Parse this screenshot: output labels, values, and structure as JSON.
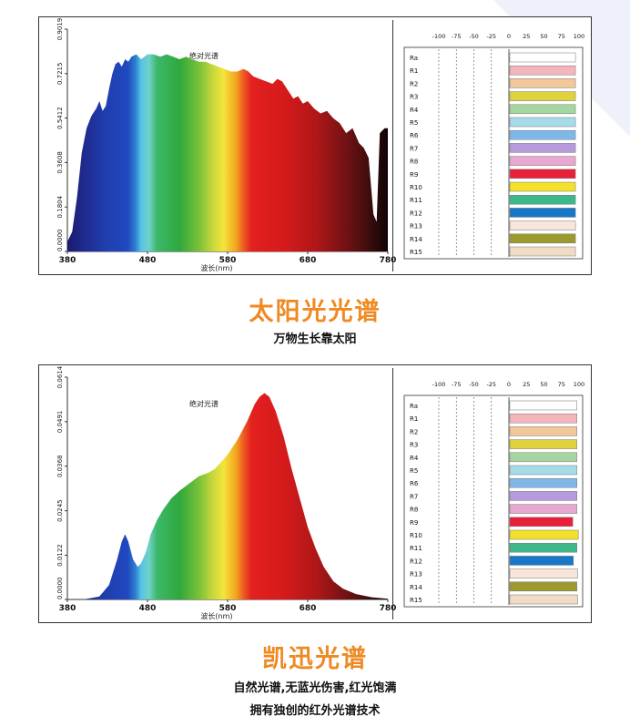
{
  "colors": {
    "accent": "#ef8a22",
    "text": "#111111"
  },
  "charts": [
    {
      "chart_data": {
        "type": "area",
        "title": "绝对光谱",
        "xlabel": "波长(nm)",
        "ylabel": "",
        "xlim": [
          380,
          780
        ],
        "ylim": [
          0,
          0.9019
        ],
        "x_ticks": [
          380,
          480,
          580,
          680,
          780
        ],
        "y_ticks": [
          "0.0000",
          "0.1804",
          "0.3608",
          "0.5412",
          "0.7215",
          "0.9019"
        ],
        "points": [
          [
            380,
            0.04
          ],
          [
            386,
            0.08
          ],
          [
            392,
            0.22
          ],
          [
            398,
            0.4
          ],
          [
            404,
            0.5
          ],
          [
            410,
            0.55
          ],
          [
            416,
            0.58
          ],
          [
            420,
            0.61
          ],
          [
            424,
            0.57
          ],
          [
            428,
            0.59
          ],
          [
            432,
            0.66
          ],
          [
            436,
            0.72
          ],
          [
            440,
            0.76
          ],
          [
            444,
            0.77
          ],
          [
            448,
            0.75
          ],
          [
            452,
            0.78
          ],
          [
            456,
            0.77
          ],
          [
            460,
            0.79
          ],
          [
            466,
            0.8
          ],
          [
            472,
            0.78
          ],
          [
            480,
            0.8
          ],
          [
            488,
            0.8
          ],
          [
            496,
            0.79
          ],
          [
            504,
            0.8
          ],
          [
            512,
            0.79
          ],
          [
            520,
            0.78
          ],
          [
            528,
            0.79
          ],
          [
            536,
            0.78
          ],
          [
            544,
            0.77
          ],
          [
            552,
            0.77
          ],
          [
            560,
            0.76
          ],
          [
            568,
            0.75
          ],
          [
            576,
            0.74
          ],
          [
            584,
            0.73
          ],
          [
            592,
            0.73
          ],
          [
            600,
            0.74
          ],
          [
            606,
            0.73
          ],
          [
            612,
            0.71
          ],
          [
            620,
            0.7
          ],
          [
            628,
            0.69
          ],
          [
            636,
            0.68
          ],
          [
            642,
            0.7
          ],
          [
            648,
            0.69
          ],
          [
            656,
            0.65
          ],
          [
            662,
            0.62
          ],
          [
            668,
            0.63
          ],
          [
            674,
            0.6
          ],
          [
            680,
            0.61
          ],
          [
            688,
            0.58
          ],
          [
            696,
            0.56
          ],
          [
            704,
            0.57
          ],
          [
            712,
            0.54
          ],
          [
            720,
            0.52
          ],
          [
            728,
            0.48
          ],
          [
            736,
            0.5
          ],
          [
            744,
            0.44
          ],
          [
            750,
            0.42
          ],
          [
            756,
            0.38
          ],
          [
            762,
            0.15
          ],
          [
            766,
            0.12
          ],
          [
            770,
            0.48
          ],
          [
            776,
            0.5
          ],
          [
            780,
            0.5
          ]
        ]
      },
      "ri": {
        "axis_labels": [
          "-100",
          "-75",
          "-50",
          "-25",
          "0",
          "25",
          "50",
          "75",
          "100"
        ],
        "rows": [
          {
            "label": "Ra",
            "value": 95,
            "color": "#ffffff"
          },
          {
            "label": "R1",
            "value": 95,
            "color": "#f5b5bd"
          },
          {
            "label": "R2",
            "value": 95,
            "color": "#f2c79a"
          },
          {
            "label": "R3",
            "value": 95,
            "color": "#e0d23c"
          },
          {
            "label": "R4",
            "value": 95,
            "color": "#a5d6a0"
          },
          {
            "label": "R5",
            "value": 95,
            "color": "#a5dce8"
          },
          {
            "label": "R6",
            "value": 95,
            "color": "#7fb8e8"
          },
          {
            "label": "R7",
            "value": 95,
            "color": "#b69adb"
          },
          {
            "label": "R8",
            "value": 95,
            "color": "#e8a8d2"
          },
          {
            "label": "R9",
            "value": 95,
            "color": "#e8203a"
          },
          {
            "label": "R10",
            "value": 95,
            "color": "#f2e02a"
          },
          {
            "label": "R11",
            "value": 95,
            "color": "#3cb88a"
          },
          {
            "label": "R12",
            "value": 95,
            "color": "#1878c8"
          },
          {
            "label": "R13",
            "value": 95,
            "color": "#f8e6dc"
          },
          {
            "label": "R14",
            "value": 95,
            "color": "#9c9a2e"
          },
          {
            "label": "R15",
            "value": 95,
            "color": "#f0dcc4"
          }
        ]
      }
    },
    {
      "chart_data": {
        "type": "area",
        "title": "绝对光谱",
        "xlabel": "波长(nm)",
        "ylabel": "",
        "xlim": [
          380,
          780
        ],
        "ylim": [
          0,
          0.0614
        ],
        "x_ticks": [
          380,
          480,
          580,
          680,
          780
        ],
        "y_ticks": [
          "0.0000",
          "0.0122",
          "0.0245",
          "0.0368",
          "0.0491",
          "0.0614"
        ],
        "points": [
          [
            380,
            0.0
          ],
          [
            400,
            0.0
          ],
          [
            420,
            0.0008
          ],
          [
            432,
            0.004
          ],
          [
            442,
            0.011
          ],
          [
            448,
            0.016
          ],
          [
            452,
            0.018
          ],
          [
            456,
            0.016
          ],
          [
            462,
            0.011
          ],
          [
            468,
            0.009
          ],
          [
            472,
            0.01
          ],
          [
            478,
            0.013
          ],
          [
            484,
            0.018
          ],
          [
            492,
            0.022
          ],
          [
            500,
            0.025
          ],
          [
            510,
            0.028
          ],
          [
            520,
            0.03
          ],
          [
            532,
            0.032
          ],
          [
            544,
            0.034
          ],
          [
            556,
            0.035
          ],
          [
            564,
            0.036
          ],
          [
            572,
            0.038
          ],
          [
            580,
            0.04
          ],
          [
            592,
            0.044
          ],
          [
            604,
            0.049
          ],
          [
            614,
            0.054
          ],
          [
            620,
            0.056
          ],
          [
            626,
            0.057
          ],
          [
            632,
            0.056
          ],
          [
            640,
            0.052
          ],
          [
            650,
            0.045
          ],
          [
            660,
            0.036
          ],
          [
            670,
            0.028
          ],
          [
            680,
            0.02
          ],
          [
            690,
            0.014
          ],
          [
            700,
            0.009
          ],
          [
            712,
            0.005
          ],
          [
            724,
            0.003
          ],
          [
            740,
            0.0015
          ],
          [
            760,
            0.0006
          ],
          [
            780,
            0.0002
          ]
        ]
      },
      "ri": {
        "axis_labels": [
          "-100",
          "-75",
          "-50",
          "-25",
          "0",
          "25",
          "50",
          "75",
          "100"
        ],
        "rows": [
          {
            "label": "Ra",
            "value": 97,
            "color": "#ffffff"
          },
          {
            "label": "R1",
            "value": 97,
            "color": "#f5b5bd"
          },
          {
            "label": "R2",
            "value": 97,
            "color": "#f2c79a"
          },
          {
            "label": "R3",
            "value": 97,
            "color": "#e0d23c"
          },
          {
            "label": "R4",
            "value": 97,
            "color": "#a5d6a0"
          },
          {
            "label": "R5",
            "value": 97,
            "color": "#a5dce8"
          },
          {
            "label": "R6",
            "value": 97,
            "color": "#7fb8e8"
          },
          {
            "label": "R7",
            "value": 97,
            "color": "#b69adb"
          },
          {
            "label": "R8",
            "value": 97,
            "color": "#e8a8d2"
          },
          {
            "label": "R9",
            "value": 91,
            "color": "#e8203a"
          },
          {
            "label": "R10",
            "value": 99,
            "color": "#f2e02a"
          },
          {
            "label": "R11",
            "value": 97,
            "color": "#3cb88a"
          },
          {
            "label": "R12",
            "value": 92,
            "color": "#1878c8"
          },
          {
            "label": "R13",
            "value": 98,
            "color": "#f8e6dc"
          },
          {
            "label": "R14",
            "value": 97,
            "color": "#9c9a2e"
          },
          {
            "label": "R15",
            "value": 98,
            "color": "#f0dcc4"
          }
        ]
      }
    }
  ],
  "section1": {
    "title": "太阳光光谱",
    "subtitle": "万物生长靠太阳"
  },
  "section2": {
    "title": "凯迅光谱",
    "line1": "自然光谱,无蓝光伤害,红光饱满",
    "line2": "拥有独创的红外光谱技术"
  }
}
